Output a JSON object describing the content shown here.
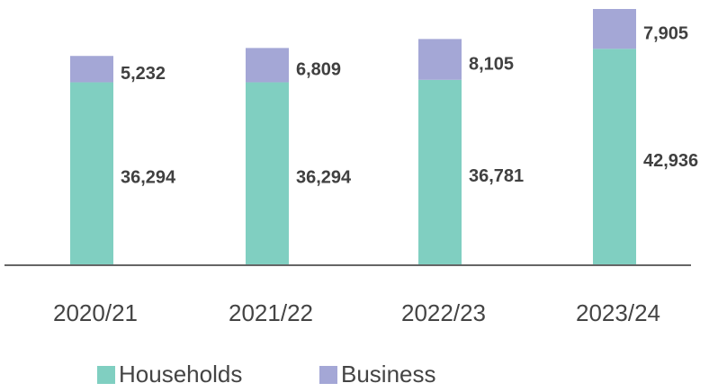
{
  "chart_data": {
    "type": "stacked_bar",
    "categories": [
      "2020/21",
      "2021/22",
      "2022/23",
      "2023/24"
    ],
    "series": [
      {
        "name": "Households",
        "color": "#80cfc1",
        "values": [
          36294,
          36294,
          36781,
          42936
        ],
        "value_labels": [
          "36,294",
          "36,294",
          "36,781",
          "42,936"
        ]
      },
      {
        "name": "Business",
        "color": "#a4a7d6",
        "values": [
          5232,
          6809,
          8105,
          7905
        ],
        "value_labels": [
          "5,232",
          "6,809",
          "8,105",
          "7,905"
        ]
      }
    ]
  }
}
